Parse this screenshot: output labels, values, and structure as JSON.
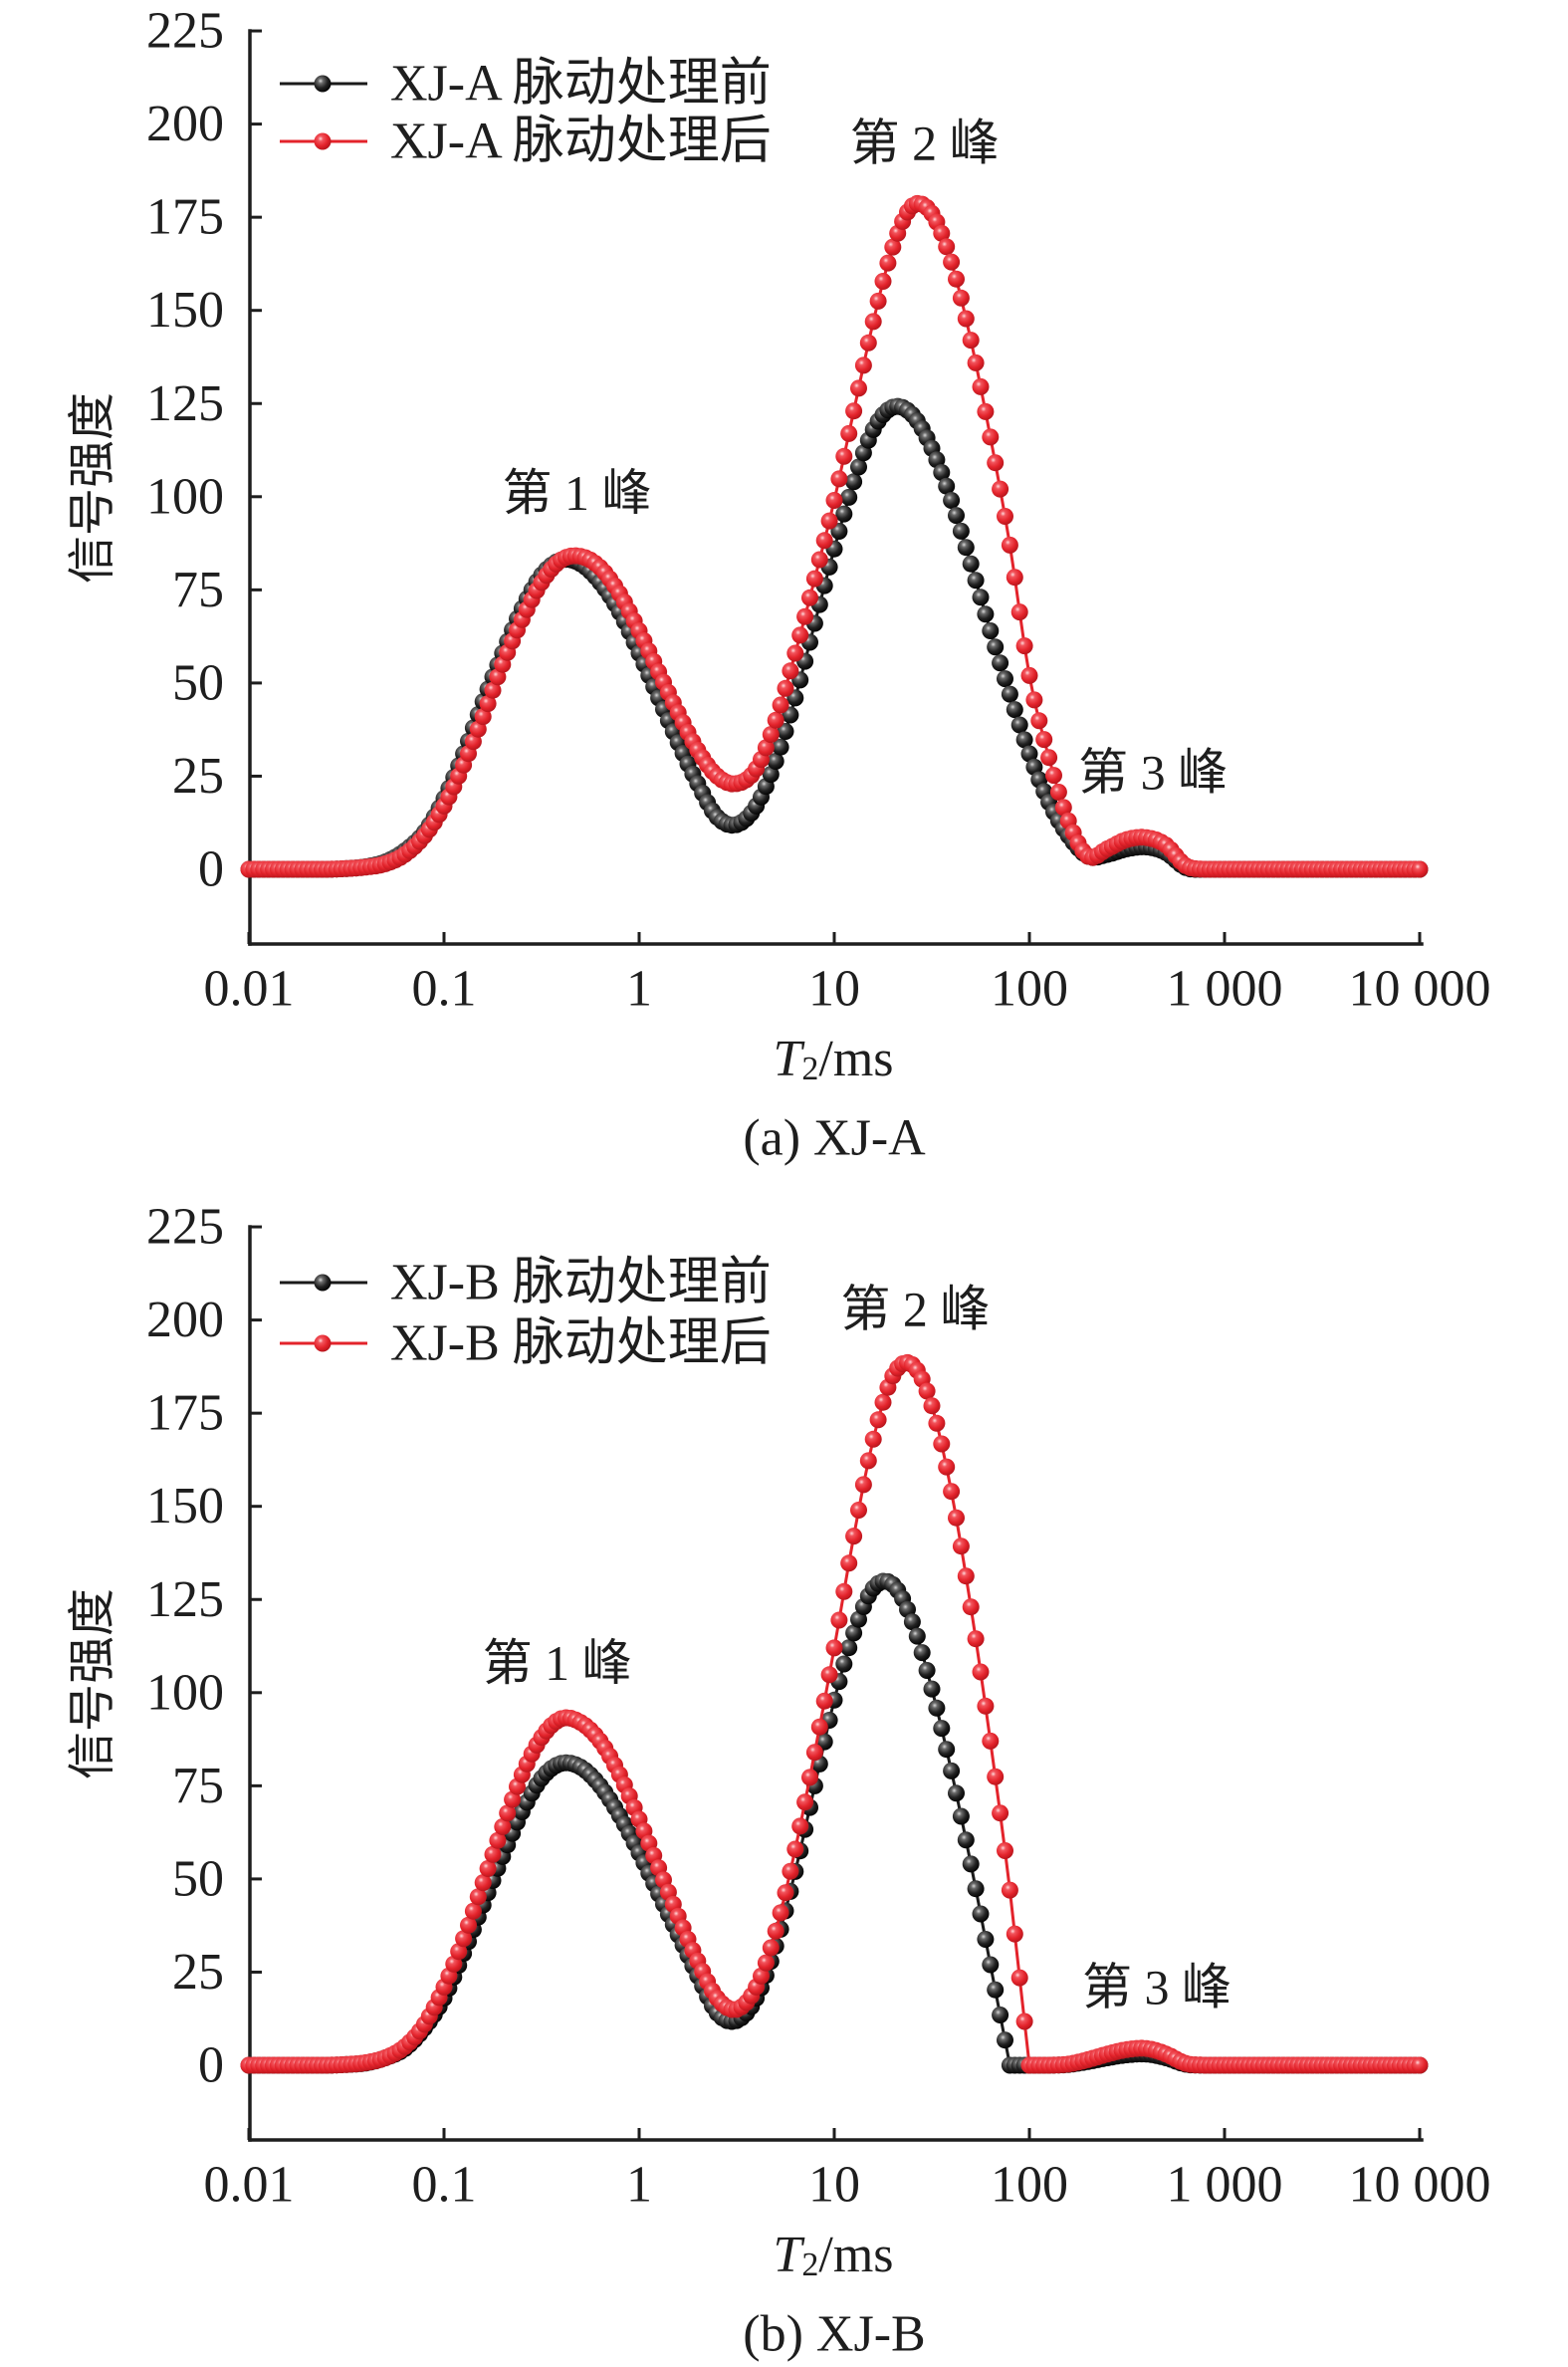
{
  "figure": {
    "background": "#ffffff",
    "series_colors": {
      "before": "#1a1a1a",
      "after": "#e3232b"
    }
  },
  "chart_data": [
    {
      "type": "line",
      "title": "(a) XJ-A",
      "xlabel": {
        "symbol": "T",
        "subscript": "2",
        "unit": "/ms"
      },
      "ylabel": "信号强度",
      "x_scale": "log10",
      "xlim": [
        0.01,
        10000
      ],
      "ylim": [
        -20,
        225
      ],
      "grid": false,
      "legend_position": "top-left",
      "x_ticks": [
        0.01,
        0.1,
        1,
        10,
        100,
        1000,
        10000
      ],
      "x_tick_labels": [
        "0.01",
        "0.1",
        "1",
        "10",
        "100",
        "1 000",
        "10 000"
      ],
      "y_ticks": [
        0,
        25,
        50,
        75,
        100,
        125,
        150,
        175,
        200,
        225
      ],
      "y_tick_labels": [
        "0",
        "25",
        "50",
        "75",
        "100",
        "125",
        "150",
        "175",
        "200",
        "225"
      ],
      "annotations": [
        {
          "text": "第 1 峰",
          "x": 0.48,
          "y": 101
        },
        {
          "text": "第 2 峰",
          "x": 29,
          "y": 195
        },
        {
          "text": "第 3 峰",
          "x": 430,
          "y": 26
        }
      ],
      "x_log10": [
        -2.0,
        -1.9,
        -1.8,
        -1.7,
        -1.6,
        -1.5,
        -1.4,
        -1.3,
        -1.2,
        -1.1,
        -1.0,
        -0.9,
        -0.8,
        -0.7,
        -0.6,
        -0.5,
        -0.4,
        -0.3,
        -0.2,
        -0.1,
        0.0,
        0.1,
        0.2,
        0.3,
        0.4,
        0.5,
        0.6,
        0.7,
        0.8,
        0.9,
        1.0,
        1.1,
        1.2,
        1.3,
        1.4,
        1.5,
        1.6,
        1.7,
        1.8,
        1.9,
        2.0,
        2.1,
        2.2,
        2.3,
        2.4,
        2.5,
        2.6,
        2.7,
        2.8,
        2.9,
        3.0,
        3.1,
        3.2,
        3.3,
        3.4,
        3.5,
        3.6,
        3.7,
        3.8,
        3.9,
        4.0
      ],
      "series": [
        {
          "name": "XJ-A 脉动处理前",
          "key": "before",
          "color": "#1a1a1a",
          "y": [
            0,
            0,
            0,
            0,
            0,
            0.2,
            0.7,
            2,
            5,
            10,
            19,
            31,
            45,
            58,
            70,
            79,
            83,
            82,
            77,
            69,
            58,
            46,
            34,
            23,
            14,
            12,
            17,
            29,
            46,
            66,
            86,
            104,
            118,
            124,
            122,
            113,
            99,
            82,
            64,
            47,
            31,
            18,
            9,
            3.5,
            4,
            5.5,
            6,
            4.5,
            0.5,
            0,
            0,
            0,
            0,
            0,
            0,
            0,
            0,
            0,
            0,
            0,
            0
          ]
        },
        {
          "name": "XJ-A 脉动处理后",
          "key": "after",
          "color": "#e3232b",
          "y": [
            0,
            0,
            0,
            0,
            0,
            0.2,
            0.6,
            1.5,
            4,
            9,
            17,
            28,
            41,
            55,
            67,
            77,
            83,
            84,
            81,
            74,
            64,
            53,
            42,
            32,
            25,
            23,
            27,
            40,
            58,
            78,
            99,
            123,
            147,
            167,
            178,
            176,
            163,
            142,
            116,
            87,
            52,
            30,
            13,
            3.5,
            5.5,
            8,
            8.5,
            6.5,
            1,
            0,
            0,
            0,
            0,
            0,
            0,
            0,
            0,
            0,
            0,
            0,
            0
          ]
        }
      ]
    },
    {
      "type": "line",
      "title": "(b) XJ-B",
      "xlabel": {
        "symbol": "T",
        "subscript": "2",
        "unit": "/ms"
      },
      "ylabel": "信号强度",
      "x_scale": "log10",
      "xlim": [
        0.01,
        10000
      ],
      "ylim": [
        -20,
        225
      ],
      "grid": false,
      "legend_position": "top-left",
      "x_ticks": [
        0.01,
        0.1,
        1,
        10,
        100,
        1000,
        10000
      ],
      "x_tick_labels": [
        "0.01",
        "0.1",
        "1",
        "10",
        "100",
        "1 000",
        "10 000"
      ],
      "y_ticks": [
        0,
        25,
        50,
        75,
        100,
        125,
        150,
        175,
        200,
        225
      ],
      "y_tick_labels": [
        "0",
        "25",
        "50",
        "75",
        "100",
        "125",
        "150",
        "175",
        "200",
        "225"
      ],
      "annotations": [
        {
          "text": "第 1 峰",
          "x": 0.38,
          "y": 108
        },
        {
          "text": "第 2 峰",
          "x": 26,
          "y": 203
        },
        {
          "text": "第 3 峰",
          "x": 450,
          "y": 21
        }
      ],
      "x_log10": [
        -2.0,
        -1.9,
        -1.8,
        -1.7,
        -1.6,
        -1.5,
        -1.4,
        -1.3,
        -1.2,
        -1.1,
        -1.0,
        -0.9,
        -0.8,
        -0.7,
        -0.6,
        -0.5,
        -0.4,
        -0.3,
        -0.2,
        -0.1,
        0.0,
        0.1,
        0.2,
        0.3,
        0.4,
        0.5,
        0.6,
        0.7,
        0.8,
        0.9,
        1.0,
        1.1,
        1.2,
        1.3,
        1.4,
        1.5,
        1.6,
        1.7,
        1.8,
        1.9,
        2.0,
        2.1,
        2.2,
        2.3,
        2.4,
        2.5,
        2.6,
        2.7,
        2.8,
        2.9,
        3.0,
        3.1,
        3.2,
        3.3,
        3.4,
        3.5,
        3.6,
        3.7,
        3.8,
        3.9,
        4.0
      ],
      "series": [
        {
          "name": "XJ-B 脉动处理前",
          "key": "before",
          "color": "#1a1a1a",
          "y": [
            0,
            0,
            0,
            0,
            0,
            0.2,
            0.6,
            2,
            4.5,
            10,
            18,
            30,
            43,
            56,
            68,
            77,
            81,
            80,
            75,
            67,
            57,
            46,
            35,
            24,
            14,
            12,
            18,
            32,
            52,
            75,
            98,
            116,
            128,
            129,
            119,
            101,
            79,
            54,
            27,
            0,
            0,
            0,
            0.2,
            1,
            2,
            2.8,
            3,
            2,
            0.3,
            0,
            0,
            0,
            0,
            0,
            0,
            0,
            0,
            0,
            0,
            0,
            0
          ]
        },
        {
          "name": "XJ-B 脉动处理后",
          "key": "after",
          "color": "#e3232b",
          "y": [
            0,
            0,
            0,
            0,
            0,
            0.2,
            0.7,
            2,
            5,
            11,
            21,
            34,
            49,
            64,
            78,
            88,
            93,
            92,
            87,
            78,
            66,
            53,
            40,
            28,
            18,
            15,
            21,
            36,
            58,
            84,
            112,
            142,
            168,
            185,
            188,
            177,
            154,
            123,
            87,
            47,
            0,
            0,
            0.3,
            1.5,
            3,
            4.2,
            4.5,
            3,
            0.5,
            0,
            0,
            0,
            0,
            0,
            0,
            0,
            0,
            0,
            0,
            0,
            0
          ]
        }
      ]
    }
  ]
}
